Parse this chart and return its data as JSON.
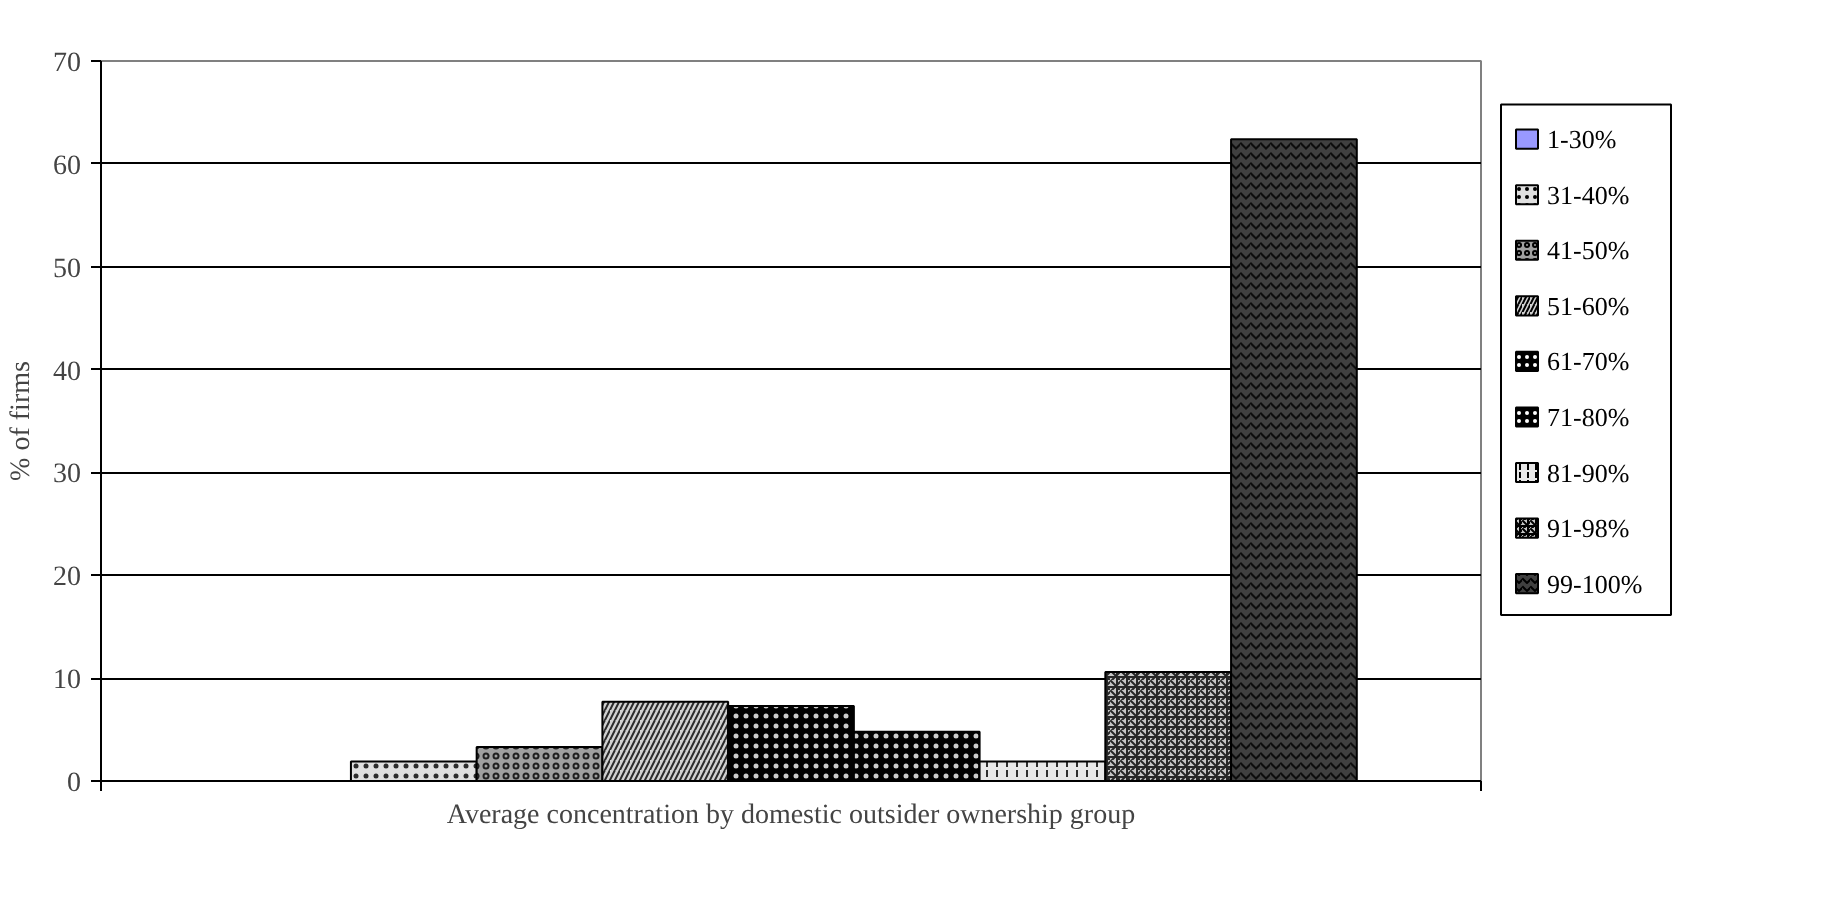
{
  "chart_data": {
    "type": "bar",
    "xlabel": "Average concentration by domestic outsider ownership group",
    "ylabel": "% of firms",
    "categories": [
      null
    ],
    "series": [
      {
        "name": "1-30%",
        "color": "#9999ff",
        "values": [
          0
        ]
      },
      {
        "name": "31-40%",
        "color": "#e0e0e0",
        "values": [
          1.9
        ]
      },
      {
        "name": "41-50%",
        "color": "#a0a0a0",
        "values": [
          3.3
        ]
      },
      {
        "name": "51-60%",
        "color": "#d0d0d0",
        "values": [
          7.7
        ]
      },
      {
        "name": "61-70%",
        "color": "#000000",
        "values": [
          7.3
        ]
      },
      {
        "name": "71-80%",
        "color": "#000000",
        "values": [
          4.8
        ]
      },
      {
        "name": "81-90%",
        "color": "#e8e8e8",
        "values": [
          1.9
        ]
      },
      {
        "name": "91-98%",
        "color": "#c8c8c8",
        "values": [
          10.6
        ]
      },
      {
        "name": "99-100%",
        "color": "#404040",
        "values": [
          62.4
        ]
      }
    ],
    "ylim": [
      0,
      70
    ],
    "yticks": [
      0,
      10,
      20,
      30,
      40,
      50,
      60,
      70
    ],
    "grid": "y",
    "legend": "right",
    "tick_labels": "y"
  }
}
